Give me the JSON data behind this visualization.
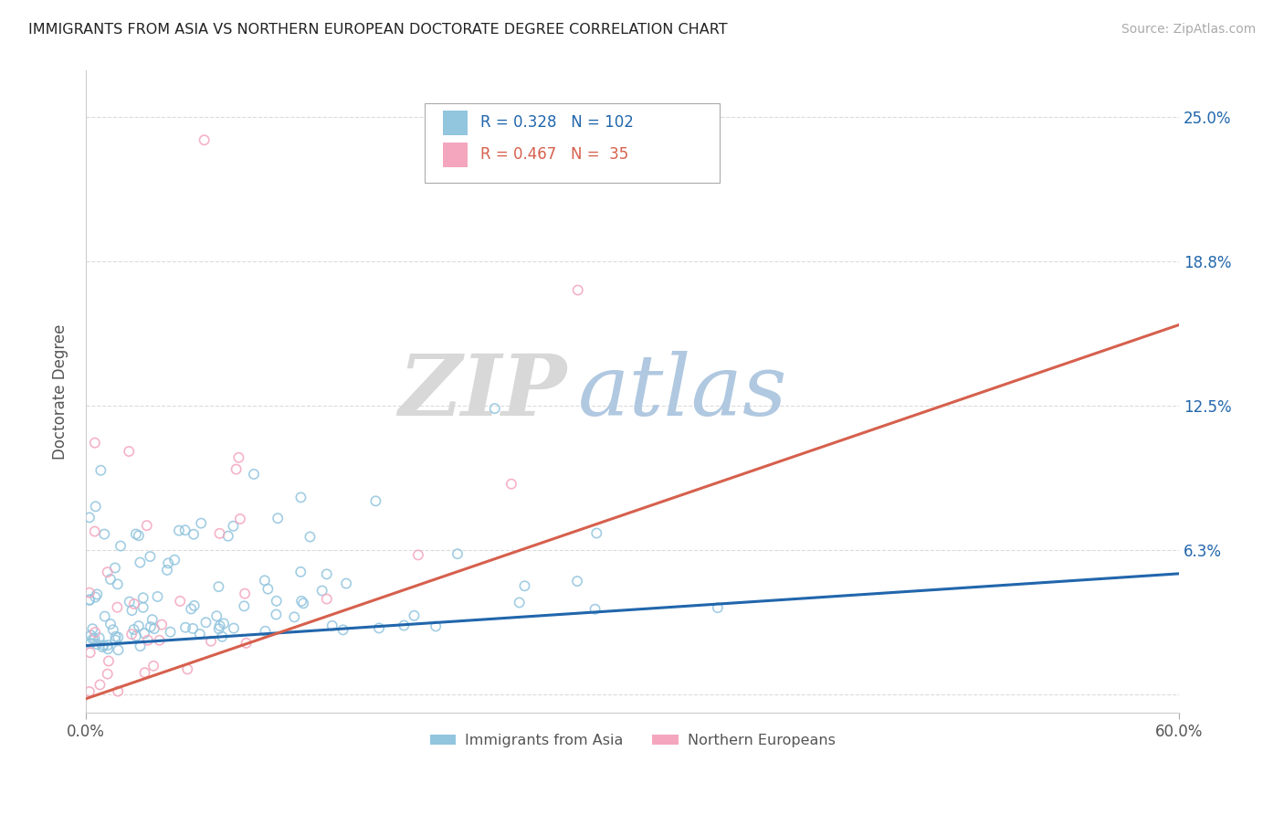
{
  "title": "IMMIGRANTS FROM ASIA VS NORTHERN EUROPEAN DOCTORATE DEGREE CORRELATION CHART",
  "source": "Source: ZipAtlas.com",
  "ylabel": "Doctorate Degree",
  "blue_label": "Immigrants from Asia",
  "pink_label": "Northern Europeans",
  "blue_R": 0.328,
  "blue_N": 102,
  "pink_R": 0.467,
  "pink_N": 35,
  "blue_color": "#92c5de",
  "pink_color": "#f4a6be",
  "blue_line_color": "#2166ac",
  "pink_line_color": "#d6604d",
  "xmin": 0.0,
  "xmax": 0.6,
  "ymin": -0.008,
  "ymax": 0.27,
  "yticks": [
    0.0,
    0.0625,
    0.125,
    0.1875,
    0.25
  ],
  "ytick_labels": [
    "",
    "6.3%",
    "12.5%",
    "18.8%",
    "25.0%"
  ],
  "xticks": [
    0.0,
    0.6
  ],
  "xtick_labels": [
    "0.0%",
    "60.0%"
  ],
  "watermark_zip": "ZIP",
  "watermark_atlas": "atlas",
  "background_color": "#ffffff",
  "grid_color": "#cccccc",
  "blue_scatter_seed": 42,
  "pink_scatter_seed": 99,
  "legend_R_blue": "R = 0.328",
  "legend_N_blue": "N = 102",
  "legend_R_pink": "R = 0.467",
  "legend_N_pink": "N =  35"
}
